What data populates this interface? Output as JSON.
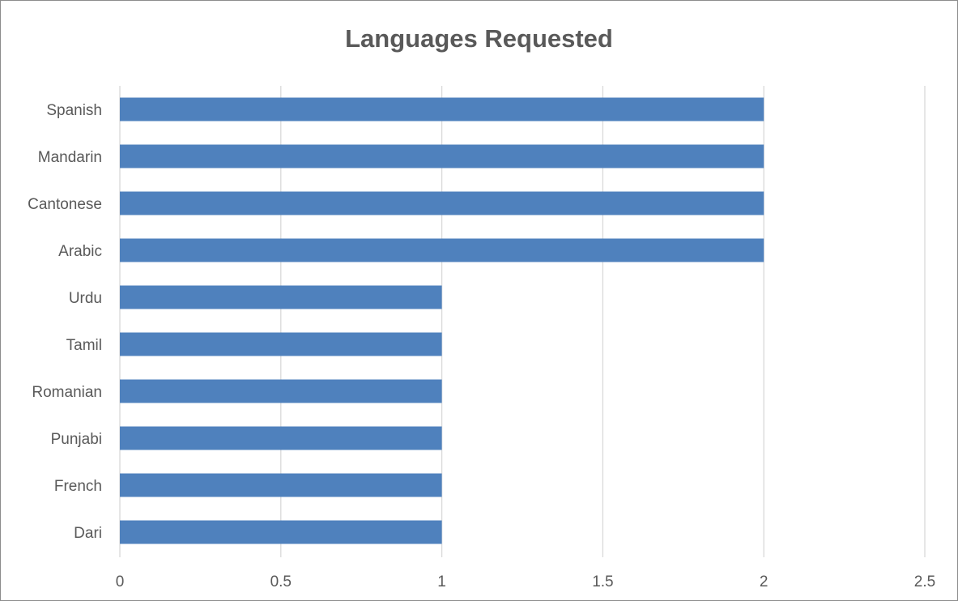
{
  "chart_data": {
    "type": "bar",
    "orientation": "horizontal",
    "title": "Languages Requested",
    "categories": [
      "Spanish",
      "Mandarin",
      "Cantonese",
      "Arabic",
      "Urdu",
      "Tamil",
      "Romanian",
      "Punjabi",
      "French",
      "Dari"
    ],
    "values": [
      2,
      2,
      2,
      2,
      1,
      1,
      1,
      1,
      1,
      1
    ],
    "xlabel": "",
    "ylabel": "",
    "xlim": [
      0,
      2.5
    ],
    "x_ticks": [
      "0",
      "0.5",
      "1",
      "1.5",
      "2",
      "2.5"
    ],
    "grid": "vertical",
    "legend": "none",
    "bar_color": "#4f81bd",
    "grid_color": "#d9d9d9",
    "text_color": "#595959"
  }
}
